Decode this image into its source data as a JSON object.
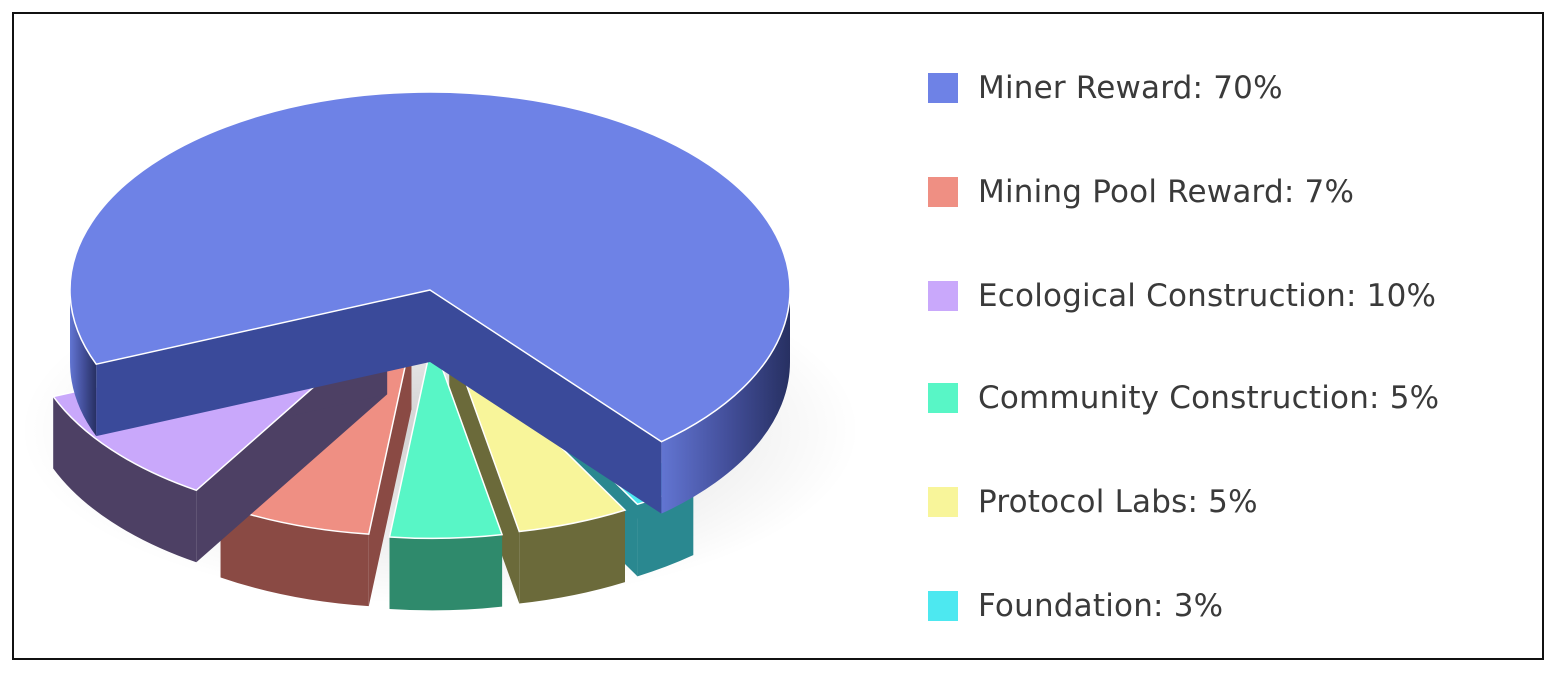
{
  "chart_data": {
    "type": "pie",
    "title": "",
    "legend_position": "right",
    "slices": [
      {
        "label": "Miner Reward: 70%",
        "name": "Miner Reward",
        "value": 70,
        "color": "#6e82e6",
        "side_color": "#3a4a9a",
        "exploded": false
      },
      {
        "label": "Mining Pool Reward: 7%",
        "name": "Mining Pool Reward",
        "value": 7,
        "color": "#ef8f83",
        "side_color": "#8a4a44",
        "exploded": true
      },
      {
        "label": "Ecological Construction: 10%",
        "name": "Ecological Construction",
        "value": 10,
        "color": "#c9a8fb",
        "side_color": "#4d4064",
        "exploded": true
      },
      {
        "label": "Community Construction: 5%",
        "name": "Community Construction",
        "value": 5,
        "color": "#58f6c6",
        "side_color": "#2f8a6c",
        "exploded": true
      },
      {
        "label": "Protocol Labs: 5%",
        "name": "Protocol Labs",
        "value": 5,
        "color": "#f8f59a",
        "side_color": "#6b6a3a",
        "exploded": true
      },
      {
        "label": "Foundation: 3%",
        "name": "Foundation",
        "value": 3,
        "color": "#4de8f0",
        "side_color": "#2a8890",
        "exploded": true
      }
    ]
  },
  "legend_order": [
    0,
    1,
    2,
    3,
    4,
    5
  ]
}
